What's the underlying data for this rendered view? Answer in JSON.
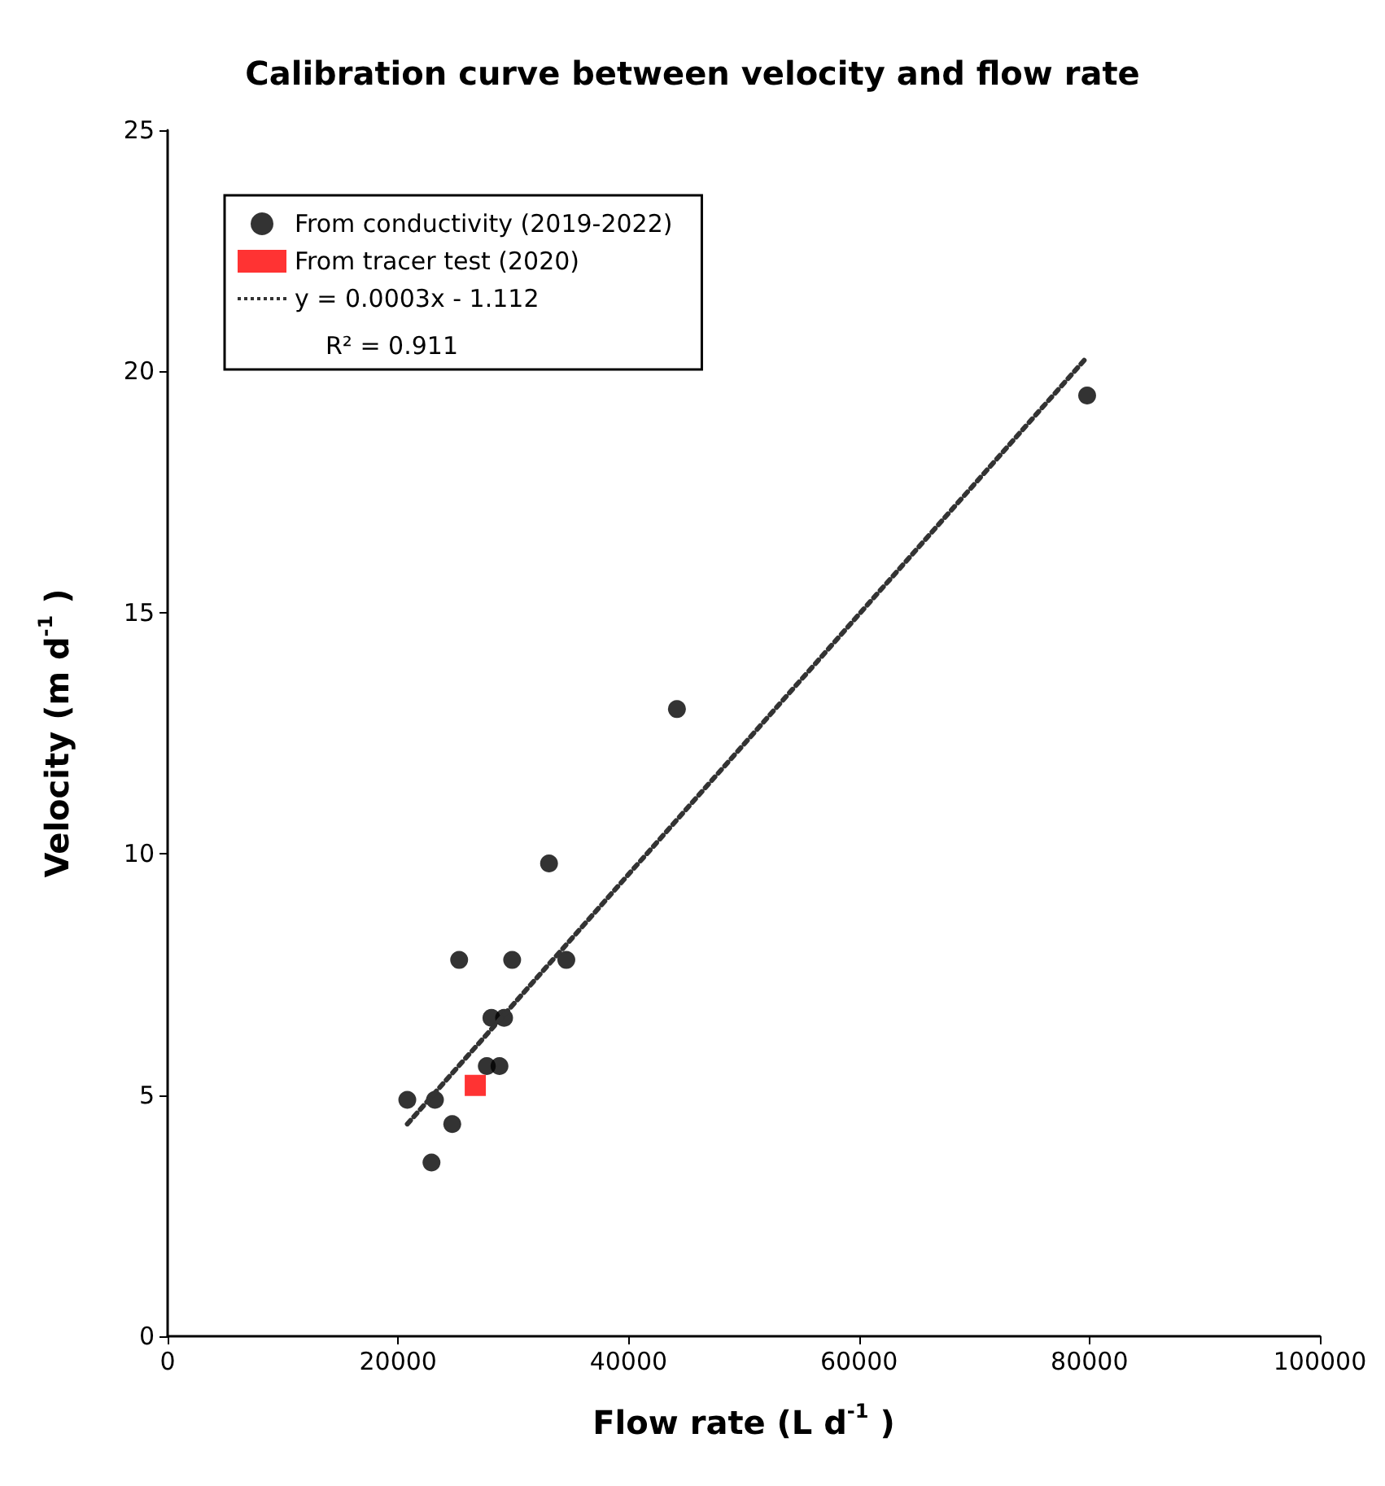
{
  "chart_data": {
    "type": "scatter",
    "title": "Calibration curve between velocity and flow rate",
    "xlabel": "Flow rate (L d$^{-1}$ )",
    "ylabel": "Velocity (m d$^{-1}$ )",
    "xlim": [
      0,
      100000
    ],
    "xticks": [
      0,
      20000,
      40000,
      60000,
      80000,
      100000
    ],
    "ylim": [
      0,
      25
    ],
    "yticks": [
      0,
      5,
      10,
      15,
      20,
      25
    ],
    "grid": false,
    "legend": "top left",
    "series": [
      {
        "name": "From conductivity (2019-2022)",
        "marker": "circle",
        "color": "#000000",
        "x": [
          20800,
          23200,
          22900,
          24700,
          25300,
          28100,
          29200,
          27700,
          28800,
          29900,
          34600,
          33100,
          44200,
          79800
        ],
        "values": [
          4.9,
          4.9,
          3.6,
          4.4,
          7.8,
          6.6,
          6.6,
          5.6,
          5.6,
          7.8,
          7.8,
          9.8,
          13.0,
          19.5
        ]
      },
      {
        "name": "From tracer test (2020)",
        "marker": "square",
        "color": "#ff0000",
        "x": [
          26700
        ],
        "values": [
          5.2
        ]
      },
      {
        "name": "y = 0.0003x - 1.112",
        "type": "line",
        "line_style": "dotted",
        "marker": "none",
        "color": "#333333",
        "x": [
          20800,
          79800
        ],
        "values": [
          4.4,
          20.3
        ]
      }
    ],
    "annotations": [
      "R² = 0.911"
    ]
  }
}
